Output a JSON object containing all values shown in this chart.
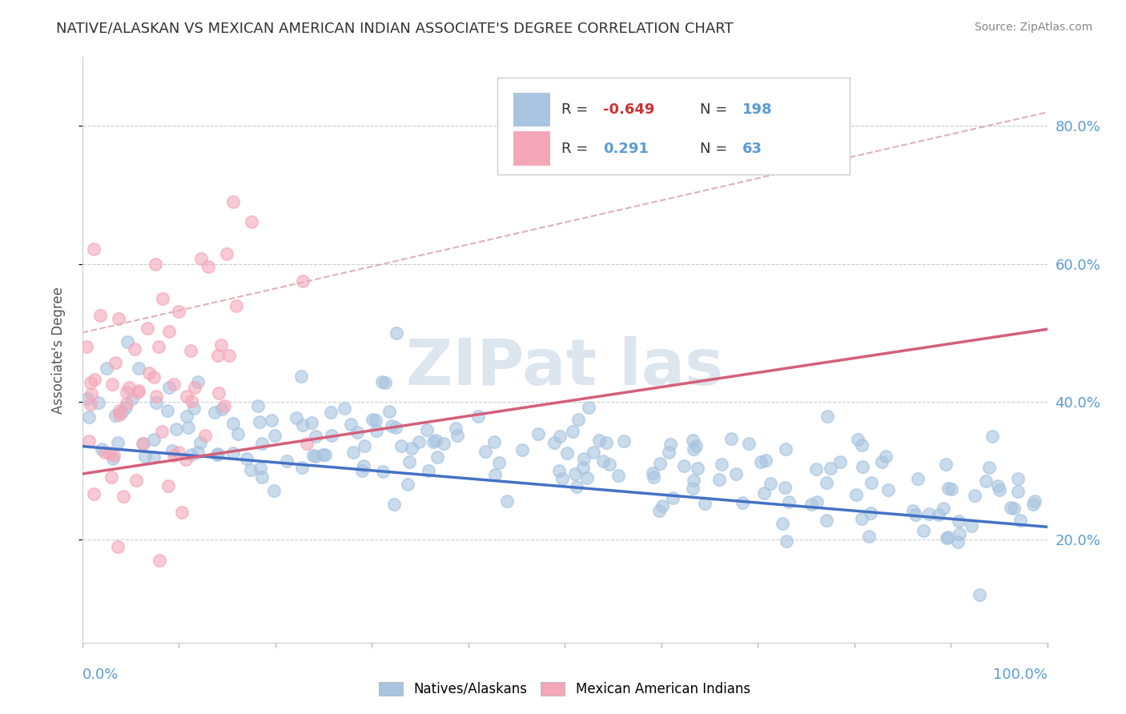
{
  "title": "NATIVE/ALASKAN VS MEXICAN AMERICAN INDIAN ASSOCIATE'S DEGREE CORRELATION CHART",
  "source": "Source: ZipAtlas.com",
  "ylabel": "Associate's Degree",
  "ytick_labels": [
    "20.0%",
    "40.0%",
    "60.0%",
    "80.0%"
  ],
  "ytick_values": [
    0.2,
    0.4,
    0.6,
    0.8
  ],
  "R_blue": -0.649,
  "N_blue": 198,
  "R_pink": 0.291,
  "N_pink": 63,
  "blue_scatter_color": "#a8c4e0",
  "blue_line_color": "#4472c4",
  "pink_scatter_color": "#f4a7b9",
  "pink_line_color": "#d45f7a",
  "dashed_line_color": "#d4a0a8",
  "legend_label_blue": "Natives/Alaskans",
  "legend_label_pink": "Mexican American Indians",
  "background_color": "#ffffff",
  "grid_color": "#cccccc",
  "title_color": "#333333",
  "watermark_color": "#dde5ef",
  "axis_label_color": "#5b9bd5",
  "ylabel_color": "#555555"
}
